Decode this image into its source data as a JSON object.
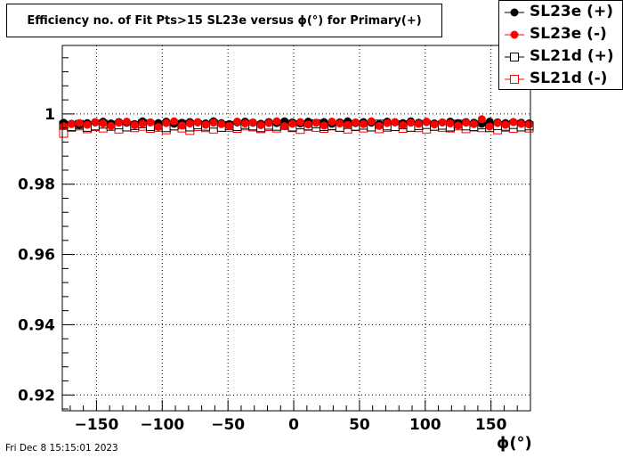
{
  "chart_data": {
    "type": "scatter",
    "title": "Efficiency no. of Fit Pts>15 SL23e versus ϕ(°) for Primary(+)",
    "xlabel": "ϕ(°)",
    "ylabel": "",
    "xlim": [
      -176,
      180
    ],
    "ylim": [
      0.9155,
      1.0195
    ],
    "xticks": [
      -150,
      -100,
      -50,
      0,
      50,
      100,
      150
    ],
    "xtick_labels": [
      "−150",
      "−100",
      "−50",
      "0",
      "50",
      "100",
      "150"
    ],
    "yticks": [
      0.92,
      0.94,
      0.96,
      0.98,
      1.0
    ],
    "ytick_labels": [
      "0.92",
      "0.94",
      "0.96",
      "0.98",
      "1"
    ],
    "grid": true,
    "legend_position": "top-right",
    "x": [
      -175,
      -169,
      -163,
      -157,
      -151,
      -145,
      -139,
      -133,
      -127,
      -121,
      -115,
      -109,
      -103,
      -97,
      -91,
      -85,
      -79,
      -73,
      -67,
      -61,
      -55,
      -49,
      -43,
      -37,
      -31,
      -25,
      -19,
      -13,
      -7,
      -1,
      5,
      11,
      17,
      23,
      29,
      35,
      41,
      47,
      53,
      59,
      65,
      71,
      77,
      83,
      89,
      95,
      101,
      107,
      113,
      119,
      125,
      131,
      137,
      143,
      149,
      155,
      161,
      167,
      173,
      179
    ],
    "series": [
      {
        "name": "SL23e (+)",
        "color": "#000000",
        "marker": "filled-circle",
        "values": [
          0.9975,
          0.9972,
          0.9968,
          0.9974,
          0.9976,
          0.9978,
          0.9973,
          0.9977,
          0.9975,
          0.9971,
          0.9979,
          0.9976,
          0.9974,
          0.9978,
          0.9972,
          0.9975,
          0.9977,
          0.9976,
          0.9973,
          0.9979,
          0.9974,
          0.9971,
          0.9976,
          0.9978,
          0.9975,
          0.9972,
          0.9977,
          0.9974,
          0.9979,
          0.9976,
          0.9973,
          0.9978,
          0.9975,
          0.9977,
          0.9972,
          0.9976,
          0.9979,
          0.9974,
          0.9977,
          0.9975,
          0.9971,
          0.9978,
          0.9976,
          0.9974,
          0.9979,
          0.9975,
          0.9977,
          0.9973,
          0.9976,
          0.9978,
          0.9974,
          0.9977,
          0.9975,
          0.9972,
          0.9978,
          0.9976,
          0.9974,
          0.9977,
          0.9975,
          0.9973
        ]
      },
      {
        "name": "SL23e (-)",
        "color": "#ff0000",
        "marker": "filled-circle",
        "values": [
          0.9965,
          0.9971,
          0.9974,
          0.9969,
          0.9977,
          0.9973,
          0.9966,
          0.9975,
          0.9978,
          0.9968,
          0.9972,
          0.9976,
          0.9963,
          0.9974,
          0.9979,
          0.9967,
          0.9973,
          0.9977,
          0.9969,
          0.9975,
          0.9971,
          0.9966,
          0.9978,
          0.9973,
          0.9976,
          0.9968,
          0.9974,
          0.9979,
          0.9965,
          0.9972,
          0.9977,
          0.997,
          0.9975,
          0.9967,
          0.9978,
          0.9973,
          0.9969,
          0.9976,
          0.9971,
          0.9979,
          0.9966,
          0.9974,
          0.9977,
          0.9968,
          0.9975,
          0.9972,
          0.9978,
          0.997,
          0.9976,
          0.9973,
          0.9967,
          0.9975,
          0.9971,
          0.9985,
          0.9964,
          0.9974,
          0.9969,
          0.9977,
          0.9972,
          0.997
        ]
      },
      {
        "name": "SL21d (+)",
        "color": "#000000",
        "marker": "open-square",
        "values": [
          0.9968,
          0.9964,
          0.997,
          0.9962,
          0.9966,
          0.9971,
          0.9965,
          0.9969,
          0.9963,
          0.9967,
          0.9972,
          0.9964,
          0.9968,
          0.9961,
          0.9966,
          0.997,
          0.9963,
          0.9969,
          0.9965,
          0.9971,
          0.9962,
          0.9967,
          0.9964,
          0.997,
          0.9966,
          0.9961,
          0.9968,
          0.9965,
          0.9971,
          0.9963,
          0.9969,
          0.9966,
          0.9972,
          0.9964,
          0.9967,
          0.9962,
          0.997,
          0.9965,
          0.9968,
          0.9963,
          0.9971,
          0.9966,
          0.9964,
          0.9969,
          0.9962,
          0.9967,
          0.997,
          0.9965,
          0.9968,
          0.9963,
          0.9971,
          0.9966,
          0.9964,
          0.9969,
          0.9961,
          0.9967,
          0.9965,
          0.997,
          0.9963,
          0.9966
        ]
      },
      {
        "name": "SL21d (-)",
        "color": "#ff0000",
        "marker": "open-square",
        "values": [
          0.9945,
          0.9962,
          0.9966,
          0.9958,
          0.9964,
          0.996,
          0.9967,
          0.9957,
          0.9963,
          0.9961,
          0.9965,
          0.9959,
          0.9962,
          0.9955,
          0.9966,
          0.996,
          0.9953,
          0.9964,
          0.9961,
          0.9957,
          0.9965,
          0.9962,
          0.9959,
          0.9966,
          0.9963,
          0.9958,
          0.9964,
          0.996,
          0.9967,
          0.9961,
          0.9956,
          0.9965,
          0.9962,
          0.9959,
          0.9966,
          0.9963,
          0.9957,
          0.9964,
          0.996,
          0.9965,
          0.9958,
          0.9962,
          0.9966,
          0.9959,
          0.9963,
          0.9961,
          0.9957,
          0.9965,
          0.9962,
          0.996,
          0.9966,
          0.9958,
          0.9963,
          0.9961,
          0.9964,
          0.9955,
          0.9962,
          0.9959,
          0.9965,
          0.996
        ]
      }
    ]
  },
  "footer": {
    "timestamp": "Fri Dec  8 15:15:01 2023"
  }
}
